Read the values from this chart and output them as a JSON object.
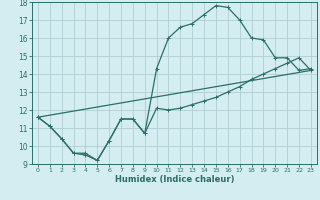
{
  "xlabel": "Humidex (Indice chaleur)",
  "background_color": "#d4edf0",
  "grid_color": "#aecdd4",
  "line_color": "#2a6e6a",
  "xlim": [
    -0.5,
    23.5
  ],
  "ylim": [
    9,
    18
  ],
  "xticks": [
    0,
    1,
    2,
    3,
    4,
    5,
    6,
    7,
    8,
    9,
    10,
    11,
    12,
    13,
    14,
    15,
    16,
    17,
    18,
    19,
    20,
    21,
    22,
    23
  ],
  "yticks": [
    9,
    10,
    11,
    12,
    13,
    14,
    15,
    16,
    17,
    18
  ],
  "line1_x": [
    0,
    1,
    2,
    3,
    4,
    5,
    6,
    7,
    8,
    9,
    10,
    11,
    12,
    13,
    14,
    15,
    16,
    17,
    18,
    19,
    20,
    21,
    22,
    23
  ],
  "line1_y": [
    11.6,
    11.1,
    10.4,
    9.6,
    9.6,
    9.2,
    10.3,
    11.5,
    11.5,
    10.7,
    12.1,
    12.0,
    12.1,
    12.3,
    12.5,
    12.7,
    13.0,
    13.3,
    13.7,
    14.0,
    14.3,
    14.6,
    14.9,
    14.2
  ],
  "line2_x": [
    0,
    1,
    2,
    3,
    4,
    5,
    6,
    7,
    8,
    9,
    10,
    11,
    12,
    13,
    14,
    15,
    16,
    17,
    18,
    19,
    20,
    21,
    22,
    23
  ],
  "line2_y": [
    11.6,
    11.1,
    10.4,
    9.6,
    9.5,
    9.2,
    10.3,
    11.5,
    11.5,
    10.7,
    14.3,
    16.0,
    16.6,
    16.8,
    17.3,
    17.8,
    17.7,
    17.0,
    16.0,
    15.9,
    14.9,
    14.9,
    14.2,
    14.3
  ],
  "line3_x": [
    0,
    23
  ],
  "line3_y": [
    11.6,
    14.2
  ],
  "marker_size": 2.5,
  "line_width": 0.9
}
